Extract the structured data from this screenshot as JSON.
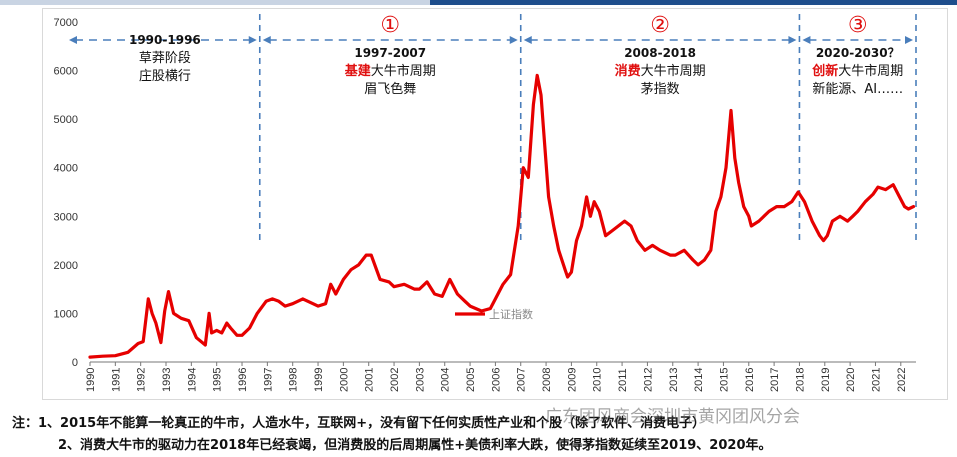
{
  "colors": {
    "line": "#e60000",
    "divider": "#4a7ebb",
    "accent_red": "#e01010",
    "topbar_left": "#c9d4e3",
    "topbar_right": "#1f4e8c"
  },
  "chart_data": {
    "type": "line",
    "title": "",
    "xlabel": "",
    "ylabel": "",
    "ylim": [
      0,
      7000
    ],
    "xlim": [
      1990,
      2022.6
    ],
    "yticks": [
      "0",
      "1000",
      "2000",
      "3000",
      "4000",
      "5000",
      "6000",
      "7000"
    ],
    "xticks": [
      "1990",
      "1991",
      "1992",
      "1993",
      "1994",
      "1995",
      "1996",
      "1997",
      "1998",
      "1999",
      "2000",
      "2001",
      "2002",
      "2003",
      "2004",
      "2005",
      "2006",
      "2007",
      "2008",
      "2009",
      "2010",
      "2011",
      "2012",
      "2013",
      "2014",
      "2015",
      "2016",
      "2017",
      "2018",
      "2019",
      "2020",
      "2021",
      "2022"
    ],
    "grid": false,
    "legend_position": "center",
    "series": [
      {
        "name": "上证指数",
        "x": [
          1990.0,
          1990.5,
          1991.0,
          1991.5,
          1991.9,
          1992.1,
          1992.3,
          1992.45,
          1992.6,
          1992.8,
          1992.95,
          1993.1,
          1993.3,
          1993.6,
          1993.9,
          1994.2,
          1994.55,
          1994.7,
          1994.8,
          1995.0,
          1995.2,
          1995.4,
          1995.55,
          1995.8,
          1996.0,
          1996.3,
          1996.6,
          1996.95,
          1997.2,
          1997.45,
          1997.7,
          1998.0,
          1998.4,
          1998.8,
          1999.0,
          1999.3,
          1999.5,
          1999.7,
          2000.0,
          2000.3,
          2000.6,
          2000.9,
          2001.1,
          2001.45,
          2001.8,
          2002.0,
          2002.4,
          2002.8,
          2003.0,
          2003.3,
          2003.6,
          2003.9,
          2004.2,
          2004.5,
          2004.8,
          2005.0,
          2005.45,
          2005.8,
          2006.0,
          2006.3,
          2006.6,
          2006.9,
          2007.1,
          2007.3,
          2007.5,
          2007.65,
          2007.8,
          2007.9,
          2008.1,
          2008.3,
          2008.5,
          2008.75,
          2008.85,
          2009.0,
          2009.2,
          2009.4,
          2009.6,
          2009.75,
          2009.9,
          2010.1,
          2010.35,
          2010.6,
          2010.85,
          2011.1,
          2011.35,
          2011.6,
          2011.9,
          2012.2,
          2012.5,
          2012.9,
          2013.1,
          2013.45,
          2013.8,
          2014.0,
          2014.25,
          2014.5,
          2014.7,
          2014.9,
          2015.1,
          2015.3,
          2015.45,
          2015.6,
          2015.8,
          2016.0,
          2016.1,
          2016.4,
          2016.8,
          2017.1,
          2017.4,
          2017.7,
          2017.95,
          2018.2,
          2018.5,
          2018.8,
          2018.95,
          2019.1,
          2019.3,
          2019.6,
          2019.9,
          2020.1,
          2020.3,
          2020.6,
          2020.9,
          2021.1,
          2021.4,
          2021.7,
          2021.95,
          2022.15,
          2022.3,
          2022.5
        ],
        "values": [
          100,
          120,
          130,
          200,
          380,
          420,
          1300,
          1000,
          800,
          400,
          1050,
          1450,
          1000,
          900,
          850,
          500,
          350,
          1000,
          600,
          650,
          600,
          800,
          700,
          550,
          550,
          700,
          1000,
          1250,
          1300,
          1250,
          1150,
          1200,
          1300,
          1200,
          1150,
          1200,
          1600,
          1400,
          1700,
          1900,
          2000,
          2200,
          2200,
          1700,
          1650,
          1550,
          1600,
          1500,
          1500,
          1650,
          1400,
          1350,
          1700,
          1400,
          1250,
          1150,
          1050,
          1100,
          1300,
          1600,
          1800,
          2800,
          4000,
          3800,
          5300,
          5900,
          5500,
          4800,
          3400,
          2800,
          2300,
          1900,
          1750,
          1850,
          2500,
          2800,
          3400,
          3000,
          3300,
          3100,
          2600,
          2700,
          2800,
          2900,
          2800,
          2500,
          2300,
          2400,
          2300,
          2200,
          2200,
          2300,
          2100,
          2000,
          2100,
          2300,
          3100,
          3400,
          4000,
          5178,
          4200,
          3700,
          3200,
          3000,
          2800,
          2900,
          3100,
          3200,
          3200,
          3300,
          3500,
          3300,
          2900,
          2600,
          2500,
          2600,
          2900,
          3000,
          2900,
          3000,
          3100,
          3300,
          3450,
          3600,
          3550,
          3650,
          3400,
          3200,
          3150,
          3200
        ],
        "color": "#e60000"
      }
    ],
    "periods": [
      {
        "years": "1990-1996",
        "line1": "草莽阶段",
        "line2": "庄股横行",
        "marker": ""
      },
      {
        "years": "1997-2007",
        "red": "基建",
        "line1_rest": "大牛市周期",
        "line2": "眉飞色舞",
        "marker": "①"
      },
      {
        "years": "2008-2018",
        "red": "消费",
        "line1_rest": "大牛市周期",
        "line2": "茅指数",
        "marker": "②"
      },
      {
        "years": "2020-2030？",
        "red": "创新",
        "line1_rest": "大牛市周期",
        "line2": "新能源、AI……",
        "marker": "③"
      }
    ],
    "dividers": [
      1996.7,
      2007.0,
      2018.0,
      2022.6
    ]
  },
  "notes": {
    "line1": "注：1、2015年不能算一轮真正的牛市，人造水牛，互联网+，没有留下任何实质性产业和个股（除了软件、消费电子）",
    "line2": "2、消费大牛市的驱动力在2018年已经衰竭，但消费股的后周期属性+美债利率大跌，使得茅指数延续至2019、2020年。"
  },
  "watermark": "广东团风商会深圳市黄冈团风分会"
}
